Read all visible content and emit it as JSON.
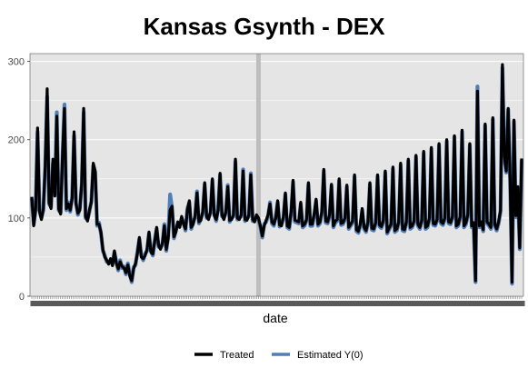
{
  "chart_data": {
    "type": "line",
    "title": "Kansas Gsynth - DEX",
    "xlabel": "date",
    "ylabel": "",
    "ylim": [
      0,
      310
    ],
    "yticks": [
      0,
      100,
      200,
      300
    ],
    "xtick_count": 260,
    "treatment_index": 118,
    "legend_position": "bottom",
    "grid": true,
    "colors": {
      "treated": "#000000",
      "estimated": "#4f7fb8",
      "panel": "#e5e5e5",
      "gridline": "#ffffff",
      "treatment_band": "#bdbdbd"
    },
    "series": [
      {
        "name": "Treated",
        "values": [
          127,
          90,
          112,
          215,
          108,
          98,
          112,
          167,
          265,
          120,
          112,
          175,
          128,
          230,
          112,
          105,
          180,
          240,
          112,
          118,
          110,
          125,
          210,
          118,
          106,
          110,
          145,
          240,
          102,
          96,
          110,
          120,
          170,
          160,
          92,
          92,
          82,
          60,
          50,
          46,
          41,
          48,
          39,
          58,
          42,
          35,
          44,
          38,
          36,
          30,
          40,
          26,
          20,
          35,
          42,
          55,
          75,
          50,
          48,
          52,
          60,
          82,
          56,
          54,
          70,
          88,
          65,
          60,
          68,
          90,
          60,
          74,
          110,
          115,
          76,
          82,
          95,
          88,
          102,
          92,
          86,
          110,
          122,
          88,
          92,
          103,
          132,
          95,
          97,
          108,
          145,
          102,
          98,
          108,
          150,
          103,
          98,
          110,
          157,
          104,
          98,
          108,
          140,
          97,
          98,
          104,
          175,
          100,
          98,
          104,
          160,
          98,
          97,
          104,
          155,
          98,
          95,
          104,
          100,
          90,
          77,
          90,
          97,
          104,
          118,
          95,
          92,
          100,
          122,
          91,
          90,
          102,
          132,
          90,
          88,
          108,
          148,
          97,
          96,
          95,
          120,
          90,
          92,
          98,
          145,
          92,
          92,
          105,
          124,
          92,
          95,
          108,
          162,
          96,
          95,
          104,
          143,
          90,
          96,
          98,
          150,
          93,
          94,
          100,
          142,
          88,
          92,
          96,
          155,
          85,
          83,
          92,
          112,
          88,
          84,
          95,
          145,
          87,
          86,
          94,
          155,
          91,
          89,
          97,
          160,
          82,
          87,
          92,
          165,
          84,
          86,
          95,
          170,
          86,
          85,
          95,
          175,
          88,
          90,
          96,
          180,
          92,
          88,
          97,
          185,
          88,
          90,
          100,
          190,
          93,
          92,
          98,
          195,
          95,
          93,
          100,
          200,
          95,
          94,
          102,
          205,
          90,
          92,
          102,
          212,
          90,
          94,
          105,
          195,
          90,
          94,
          20,
          262,
          90,
          95,
          85,
          220,
          95,
          92,
          88,
          228,
          92,
          86,
          95,
          110,
          296,
          178,
          160,
          240,
          150,
          18,
          225,
          103,
          140,
          62,
          176
        ]
      },
      {
        "name": "Estimated Y(0)",
        "values": [
          125,
          92,
          110,
          210,
          110,
          100,
          110,
          165,
          255,
          118,
          114,
          170,
          130,
          235,
          110,
          107,
          178,
          245,
          110,
          120,
          108,
          127,
          205,
          120,
          104,
          112,
          143,
          235,
          100,
          98,
          108,
          122,
          167,
          158,
          90,
          94,
          80,
          58,
          52,
          44,
          43,
          46,
          41,
          56,
          44,
          33,
          46,
          36,
          38,
          28,
          42,
          28,
          18,
          37,
          40,
          57,
          73,
          52,
          46,
          54,
          58,
          80,
          58,
          52,
          72,
          86,
          63,
          62,
          66,
          92,
          58,
          76,
          130,
          113,
          74,
          84,
          93,
          90,
          100,
          94,
          84,
          112,
          120,
          86,
          94,
          101,
          134,
          93,
          99,
          106,
          143,
          100,
          100,
          106,
          148,
          105,
          96,
          112,
          155,
          102,
          100,
          106,
          142,
          95,
          100,
          102,
          172,
          98,
          100,
          102,
          162,
          96,
          99,
          102,
          157,
          96,
          97,
          102,
          98,
          88,
          75,
          92,
          95,
          102,
          120,
          93,
          90,
          102,
          120,
          89,
          92,
          100,
          130,
          88,
          86,
          106,
          146,
          95,
          94,
          93,
          118,
          88,
          90,
          96,
          143,
          90,
          90,
          103,
          122,
          90,
          93,
          106,
          160,
          94,
          93,
          102,
          141,
          88,
          94,
          96,
          148,
          91,
          92,
          98,
          140,
          86,
          90,
          94,
          153,
          83,
          81,
          90,
          110,
          86,
          82,
          93,
          143,
          85,
          84,
          92,
          153,
          89,
          87,
          95,
          158,
          80,
          85,
          90,
          163,
          82,
          84,
          93,
          168,
          84,
          83,
          93,
          173,
          86,
          88,
          94,
          178,
          90,
          86,
          95,
          183,
          86,
          88,
          98,
          188,
          91,
          90,
          96,
          193,
          93,
          91,
          98,
          198,
          93,
          92,
          100,
          203,
          88,
          90,
          100,
          210,
          88,
          92,
          103,
          193,
          88,
          92,
          18,
          268,
          88,
          93,
          83,
          218,
          93,
          90,
          86,
          226,
          90,
          84,
          93,
          108,
          292,
          176,
          158,
          238,
          148,
          16,
          223,
          101,
          138,
          60,
          174
        ]
      }
    ]
  }
}
